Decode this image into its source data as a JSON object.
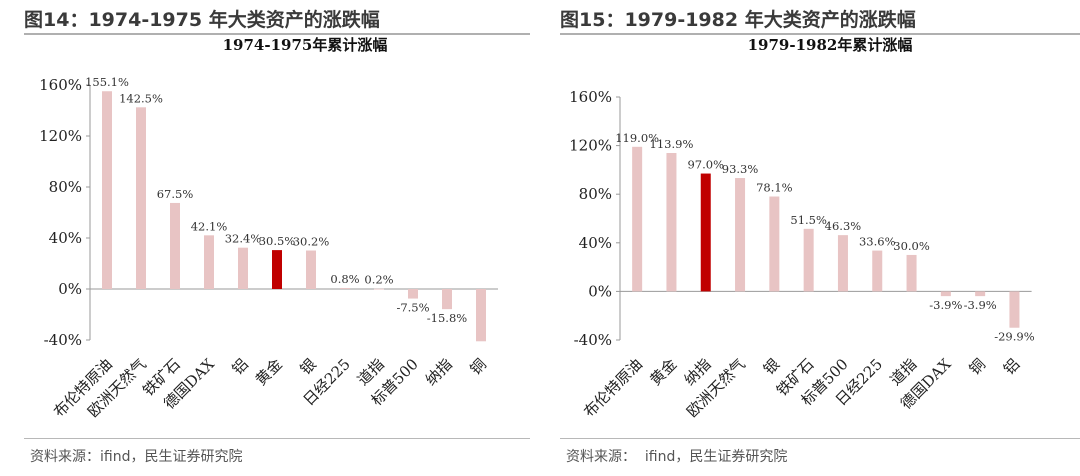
{
  "left": {
    "fig_title": "图14：1974-1975 年大类资产的涨跌幅",
    "source": "资料来源：ifind，民生证券研究院",
    "colors": {
      "bar": "#e8c4c4",
      "highlight": "#c00000"
    },
    "chart_data": {
      "type": "bar",
      "title": "1974-1975年累计涨幅",
      "xlabel": "",
      "ylabel": "",
      "categories": [
        "布伦特原油",
        "欧洲天然气",
        "铁矿石",
        "德国DAX",
        "铝",
        "黄金",
        "银",
        "日经225",
        "道指",
        "标普500",
        "纳指",
        "铜"
      ],
      "values": [
        155.1,
        142.5,
        67.5,
        42.1,
        32.4,
        30.5,
        30.2,
        0.8,
        0.2,
        -7.5,
        -15.8,
        -41.0
      ],
      "value_labels": [
        "155.1%",
        "142.5%",
        "67.5%",
        "42.1%",
        "32.4%",
        "30.5%",
        "30.2%",
        "0.8%",
        "0.2%",
        "-7.5%",
        "-15.8%",
        ""
      ],
      "highlight_index": 5,
      "yticks": [
        -40,
        0,
        40,
        80,
        120,
        160
      ],
      "ytick_labels": [
        "-40%",
        "0%",
        "40%",
        "80%",
        "120%",
        "160%"
      ],
      "ylim": [
        -40,
        160
      ],
      "grid": false,
      "legend": "none"
    }
  },
  "right": {
    "fig_title": "图15：1979-1982 年大类资产的涨跌幅",
    "source": "资料来源：  ifind，民生证券研究院",
    "colors": {
      "bar": "#e8c4c4",
      "highlight": "#c00000"
    },
    "chart_data": {
      "type": "bar",
      "title": "1979-1982年累计涨幅",
      "xlabel": "",
      "ylabel": "",
      "categories": [
        "布伦特原油",
        "黄金",
        "纳指",
        "欧洲天然气",
        "银",
        "铁矿石",
        "标普500",
        "日经225",
        "道指",
        "德国DAX",
        "铜",
        "铝"
      ],
      "values": [
        119.0,
        113.9,
        97.0,
        93.3,
        78.1,
        51.5,
        46.3,
        33.6,
        30.0,
        -3.9,
        -3.9,
        -29.9
      ],
      "value_labels": [
        "119.0%",
        "113.9%",
        "97.0%",
        "93.3%",
        "78.1%",
        "51.5%",
        "46.3%",
        "33.6%",
        "30.0%",
        "-3.9%",
        "-3.9%",
        "-29.9%"
      ],
      "highlight_index": 2,
      "yticks": [
        -40,
        0,
        40,
        80,
        120,
        160
      ],
      "ytick_labels": [
        "-40%",
        "0%",
        "40%",
        "80%",
        "120%",
        "160%"
      ],
      "ylim": [
        -40,
        160
      ],
      "grid": false,
      "legend": "none"
    }
  }
}
